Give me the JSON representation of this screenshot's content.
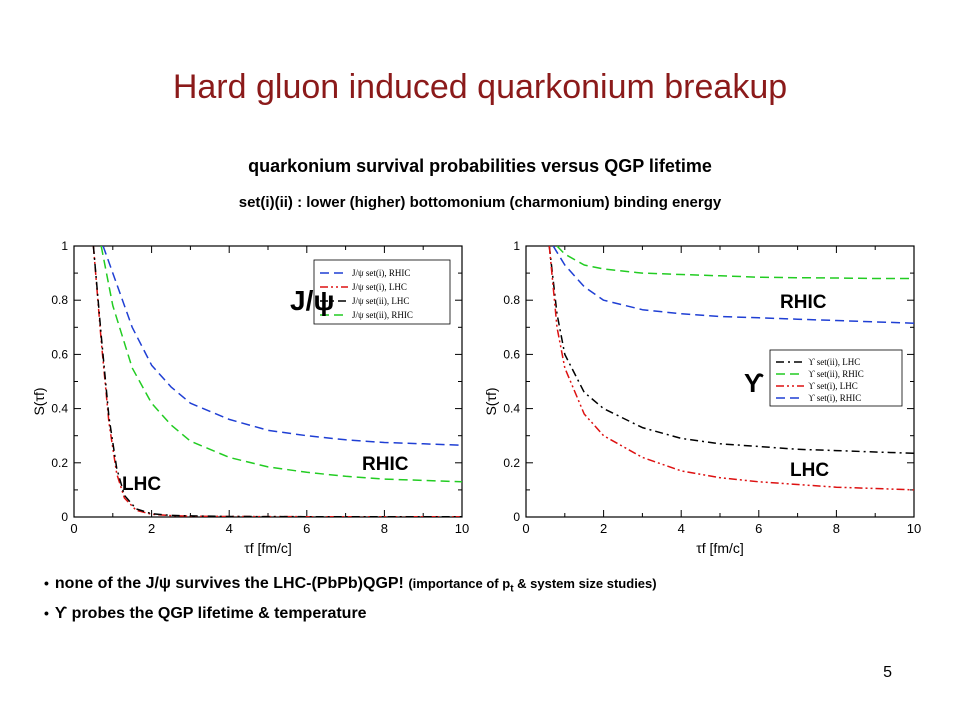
{
  "slide": {
    "title": "Hard gluon induced quarkonium breakup",
    "subtitle": "quarkonium survival probabilities versus QGP lifetime",
    "note": "set(i)(ii) : lower (higher) bottomonium (charmonium) binding energy",
    "page_number": "5"
  },
  "bullets": {
    "b1_main": "none of the J/ψ survives the LHC-(PbPb)QGP!",
    "b1_detail_pre": "(importance of p",
    "b1_detail_sub": "t",
    "b1_detail_post": " & system size studies)",
    "b2": "ϒ probes the QGP lifetime & temperature"
  },
  "colors": {
    "title": "#8b1a1a",
    "blue": "#1f3fd4",
    "green": "#22cc22",
    "red": "#dd1111",
    "black": "#000000"
  },
  "chart_data": [
    {
      "type": "line",
      "xlabel": "τf [fm/c]",
      "ylabel": "S(τf)",
      "xlim": [
        0,
        10
      ],
      "ylim": [
        0,
        1
      ],
      "xticks": [
        "0",
        "2",
        "4",
        "6",
        "8",
        "10"
      ],
      "yticks": [
        "0",
        "0.2",
        "0.4",
        "0.6",
        "0.8",
        "1"
      ],
      "legend_position": "top-right",
      "labels": {
        "particle": "J/ψ",
        "rhic": "RHIC",
        "lhc": "LHC"
      },
      "series": [
        {
          "name": "J/ψ set(i), RHIC",
          "color": "#1f3fd4",
          "style": "dash",
          "x": [
            0.75,
            1,
            1.5,
            2,
            2.5,
            3,
            4,
            5,
            6,
            7,
            8,
            9,
            10
          ],
          "y": [
            1.0,
            0.9,
            0.7,
            0.56,
            0.48,
            0.42,
            0.36,
            0.32,
            0.3,
            0.285,
            0.275,
            0.27,
            0.265
          ]
        },
        {
          "name": "J/ψ set(i), LHC",
          "color": "#dd1111",
          "style": "dashdotdot",
          "x": [
            0.5,
            0.7,
            0.9,
            1.1,
            1.3,
            1.6,
            2,
            2.5,
            3,
            4,
            6,
            8,
            10
          ],
          "y": [
            1.0,
            0.65,
            0.35,
            0.16,
            0.07,
            0.025,
            0.01,
            0.005,
            0.003,
            0.002,
            0.001,
            0.001,
            0.001
          ]
        },
        {
          "name": "J/ψ set(ii), LHC",
          "color": "#000000",
          "style": "dashdot",
          "x": [
            0.5,
            0.7,
            0.9,
            1.1,
            1.3,
            1.6,
            2,
            2.5,
            3,
            4,
            6,
            8,
            10
          ],
          "y": [
            1.0,
            0.67,
            0.37,
            0.18,
            0.08,
            0.03,
            0.012,
            0.006,
            0.004,
            0.002,
            0.001,
            0.001,
            0.001
          ]
        },
        {
          "name": "J/ψ set(ii), RHIC",
          "color": "#22cc22",
          "style": "dash",
          "x": [
            0.7,
            1,
            1.5,
            2,
            2.5,
            3,
            4,
            5,
            6,
            7,
            8,
            9,
            10
          ],
          "y": [
            1.0,
            0.78,
            0.55,
            0.42,
            0.34,
            0.28,
            0.22,
            0.185,
            0.165,
            0.15,
            0.14,
            0.135,
            0.13
          ]
        }
      ]
    },
    {
      "type": "line",
      "xlabel": "τf [fm/c]",
      "ylabel": "S(τf)",
      "xlim": [
        0,
        10
      ],
      "ylim": [
        0,
        1
      ],
      "xticks": [
        "0",
        "2",
        "4",
        "6",
        "8",
        "10"
      ],
      "yticks": [
        "0",
        "0.2",
        "0.4",
        "0.6",
        "0.8",
        "1"
      ],
      "legend_position": "center-right",
      "labels": {
        "particle": "ϒ",
        "rhic": "RHIC",
        "lhc": "LHC"
      },
      "series": [
        {
          "name": "ϒ set(ii), LHC",
          "color": "#000000",
          "style": "dashdot",
          "x": [
            0.6,
            0.8,
            1,
            1.5,
            2,
            3,
            4,
            5,
            6,
            7,
            8,
            9,
            10
          ],
          "y": [
            1.0,
            0.75,
            0.6,
            0.46,
            0.4,
            0.33,
            0.29,
            0.27,
            0.26,
            0.25,
            0.245,
            0.24,
            0.235
          ]
        },
        {
          "name": "ϒ set(ii), RHIC",
          "color": "#22cc22",
          "style": "dash",
          "x": [
            0.8,
            1,
            1.5,
            2,
            3,
            4,
            5,
            6,
            7,
            8,
            9,
            10
          ],
          "y": [
            1.0,
            0.97,
            0.93,
            0.915,
            0.9,
            0.895,
            0.89,
            0.885,
            0.883,
            0.882,
            0.88,
            0.88
          ]
        },
        {
          "name": "ϒ set(i), LHC",
          "color": "#dd1111",
          "style": "dashdotdot",
          "x": [
            0.6,
            0.8,
            1,
            1.5,
            2,
            3,
            4,
            5,
            6,
            7,
            8,
            9,
            10
          ],
          "y": [
            1.0,
            0.7,
            0.55,
            0.38,
            0.3,
            0.22,
            0.17,
            0.145,
            0.13,
            0.12,
            0.11,
            0.105,
            0.1
          ]
        },
        {
          "name": "ϒ set(i), RHIC",
          "color": "#1f3fd4",
          "style": "dash",
          "x": [
            0.7,
            1,
            1.5,
            2,
            3,
            4,
            5,
            6,
            7,
            8,
            9,
            10
          ],
          "y": [
            1.0,
            0.93,
            0.85,
            0.8,
            0.765,
            0.75,
            0.74,
            0.735,
            0.73,
            0.725,
            0.72,
            0.715
          ]
        }
      ]
    }
  ]
}
